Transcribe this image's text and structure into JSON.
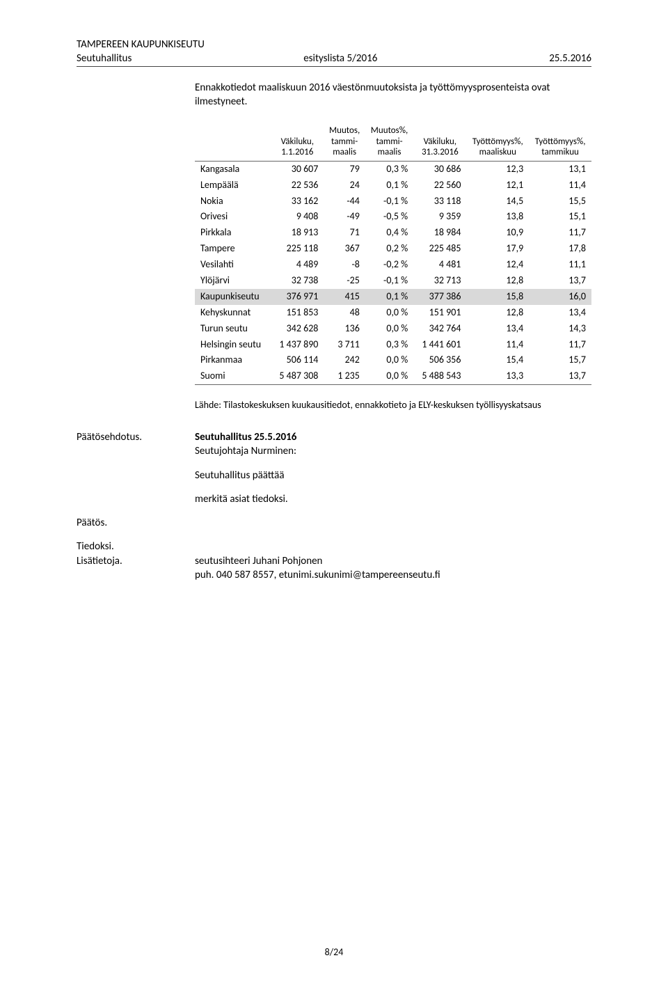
{
  "header": {
    "org": "TAMPEREEN KAUPUNKISEUTU",
    "left": "Seutuhallitus",
    "center": "esityslista 5/2016",
    "right": "25.5.2016"
  },
  "intro": "Ennakkotiedot maaliskuun 2016 väestönmuutoksista ja työttömyysprosenteista ovat ilmestyneet.",
  "table": {
    "columns": [
      "",
      "Väkiluku, 1.1.2016",
      "Muutos, tammi-maalis",
      "Muutos%, tammi-maalis",
      "Väkiluku, 31.3.2016",
      "Työttömyys%, maaliskuu",
      "Työttömyys%, tammikuu"
    ],
    "highlight_row_index": 8,
    "header_font_size": 13,
    "body_font_size": 14,
    "highlight_color": "#d9d9d9",
    "rows": [
      [
        "Kangasala",
        "30 607",
        "79",
        "0,3 %",
        "30 686",
        "12,3",
        "13,1"
      ],
      [
        "Lempäälä",
        "22 536",
        "24",
        "0,1 %",
        "22 560",
        "12,1",
        "11,4"
      ],
      [
        "Nokia",
        "33 162",
        "-44",
        "-0,1 %",
        "33 118",
        "14,5",
        "15,5"
      ],
      [
        "Orivesi",
        "9 408",
        "-49",
        "-0,5 %",
        "9 359",
        "13,8",
        "15,1"
      ],
      [
        "Pirkkala",
        "18 913",
        "71",
        "0,4 %",
        "18 984",
        "10,9",
        "11,7"
      ],
      [
        "Tampere",
        "225 118",
        "367",
        "0,2 %",
        "225 485",
        "17,9",
        "17,8"
      ],
      [
        "Vesilahti",
        "4 489",
        "-8",
        "-0,2 %",
        "4 481",
        "12,4",
        "11,1"
      ],
      [
        "Ylöjärvi",
        "32 738",
        "-25",
        "-0,1 %",
        "32 713",
        "12,8",
        "13,7"
      ],
      [
        "Kaupunkiseutu",
        "376 971",
        "415",
        "0,1 %",
        "377 386",
        "15,8",
        "16,0"
      ],
      [
        "Kehyskunnat",
        "151 853",
        "48",
        "0,0 %",
        "151 901",
        "12,8",
        "13,4"
      ],
      [
        "Turun seutu",
        "342 628",
        "136",
        "0,0 %",
        "342 764",
        "13,4",
        "14,3"
      ],
      [
        "Helsingin seutu",
        "1 437 890",
        "3 711",
        "0,3 %",
        "1 441 601",
        "11,4",
        "11,7"
      ],
      [
        "Pirkanmaa",
        "506 114",
        "242",
        "0,0 %",
        "506 356",
        "15,4",
        "15,7"
      ],
      [
        "Suomi",
        "5 487 308",
        "1 235",
        "0,0 %",
        "5 488 543",
        "13,3",
        "13,7"
      ]
    ]
  },
  "source_line": "Lähde: Tilastokeskuksen kuukausitiedot, ennakkotieto ja ELY-keskuksen työllisyyskatsaus",
  "decision": {
    "label_proposal": "Päätösehdotus.",
    "meeting_title": "Seutuhallitus 25.5.2016",
    "proposer": "Seutujohtaja Nurminen:",
    "decides": "Seutuhallitus päättää",
    "notes": "merkitä asiat tiedoksi."
  },
  "decision_label": "Päätös.",
  "info": {
    "label1": "Tiedoksi.",
    "label2": "Lisätietoja.",
    "contact_name": "seutusihteeri Juhani Pohjonen",
    "contact_detail": "puh. 040 587 8557, etunimi.sukunimi@tampereenseutu.fi"
  },
  "footer": "8/24"
}
